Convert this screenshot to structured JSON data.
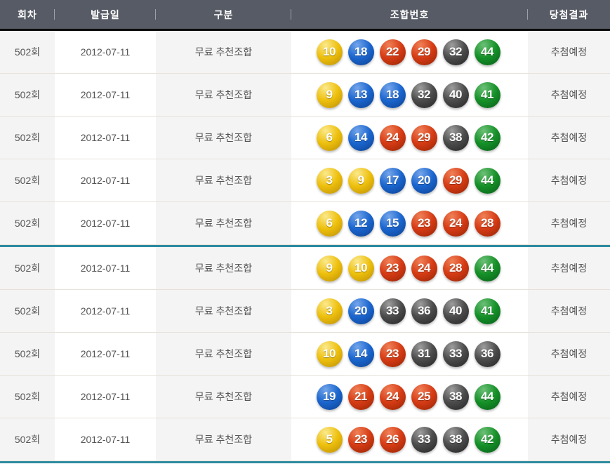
{
  "colors": {
    "header_bg": "#575b65",
    "header_text": "#ffffff",
    "top_divider_black": "#0b0b0b",
    "group_divider_teal": "#2c8ba0",
    "row_separator": "#e7e1da",
    "shaded_column_bg": "#f4f4f4",
    "cell_text": "#555555",
    "ball_yellow": "#eec00d",
    "ball_blue": "#1b66cf",
    "ball_red": "#d63c15",
    "ball_gray": "#4c4c4c",
    "ball_green": "#169128"
  },
  "ball_color_rules": [
    {
      "range": "1-10",
      "color": "yellow"
    },
    {
      "range": "11-20",
      "color": "blue"
    },
    {
      "range": "21-30",
      "color": "red"
    },
    {
      "range": "31-40",
      "color": "gray"
    },
    {
      "range": "41-45",
      "color": "green"
    }
  ],
  "table": {
    "columns": [
      "회차",
      "발급일",
      "구분",
      "조합번호",
      "당첨결과"
    ],
    "rows_per_group": 5,
    "rows": [
      {
        "round": "502회",
        "issue_date": "2012-07-11",
        "category": "무료 추천조합",
        "numbers": [
          10,
          18,
          22,
          29,
          32,
          44
        ],
        "result": "추첨예정"
      },
      {
        "round": "502회",
        "issue_date": "2012-07-11",
        "category": "무료 추천조합",
        "numbers": [
          9,
          13,
          18,
          32,
          40,
          41
        ],
        "result": "추첨예정"
      },
      {
        "round": "502회",
        "issue_date": "2012-07-11",
        "category": "무료 추천조합",
        "numbers": [
          6,
          14,
          24,
          29,
          38,
          42
        ],
        "result": "추첨예정"
      },
      {
        "round": "502회",
        "issue_date": "2012-07-11",
        "category": "무료 추천조합",
        "numbers": [
          3,
          9,
          17,
          20,
          29,
          44
        ],
        "result": "추첨예정"
      },
      {
        "round": "502회",
        "issue_date": "2012-07-11",
        "category": "무료 추천조합",
        "numbers": [
          6,
          12,
          15,
          23,
          24,
          28
        ],
        "result": "추첨예정"
      },
      {
        "round": "502회",
        "issue_date": "2012-07-11",
        "category": "무료 추천조합",
        "numbers": [
          9,
          10,
          23,
          24,
          28,
          44
        ],
        "result": "추첨예정"
      },
      {
        "round": "502회",
        "issue_date": "2012-07-11",
        "category": "무료 추천조합",
        "numbers": [
          3,
          20,
          33,
          36,
          40,
          41
        ],
        "result": "추첨예정"
      },
      {
        "round": "502회",
        "issue_date": "2012-07-11",
        "category": "무료 추천조합",
        "numbers": [
          10,
          14,
          23,
          31,
          33,
          36
        ],
        "result": "추첨예정"
      },
      {
        "round": "502회",
        "issue_date": "2012-07-11",
        "category": "무료 추천조합",
        "numbers": [
          19,
          21,
          24,
          25,
          38,
          44
        ],
        "result": "추첨예정"
      },
      {
        "round": "502회",
        "issue_date": "2012-07-11",
        "category": "무료 추천조합",
        "numbers": [
          5,
          23,
          26,
          33,
          38,
          42
        ],
        "result": "추첨예정"
      }
    ]
  }
}
